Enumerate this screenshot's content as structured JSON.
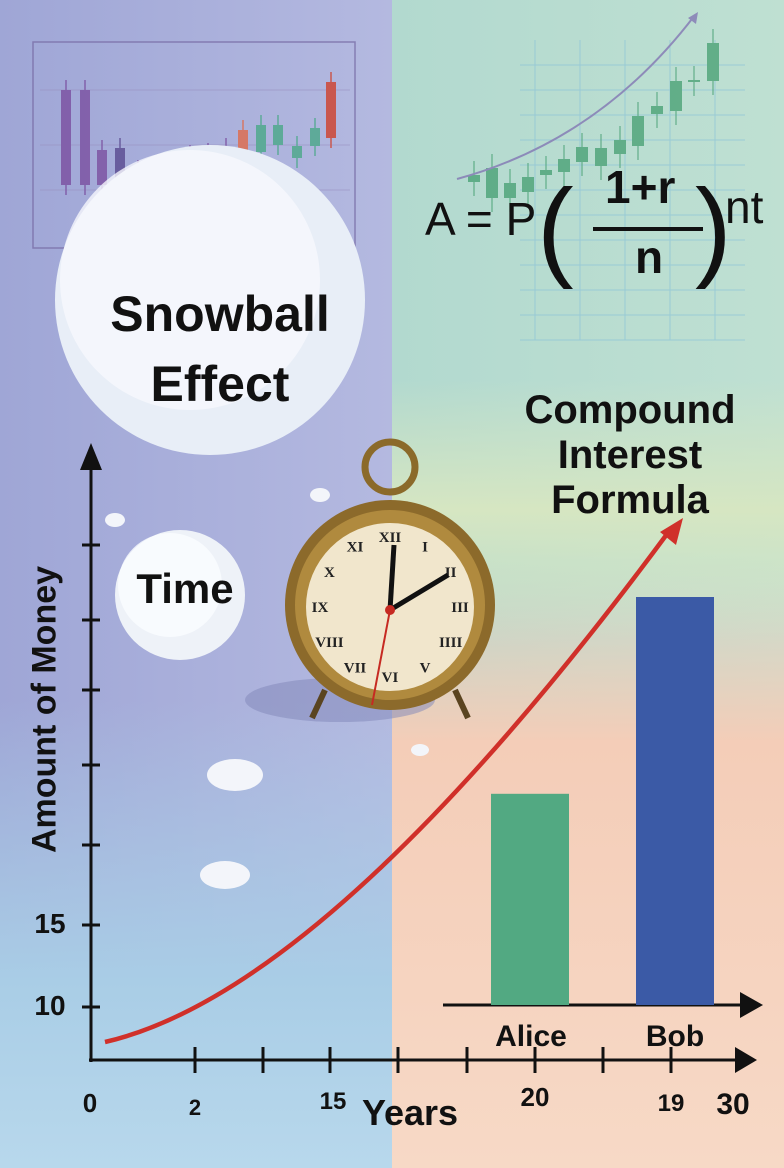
{
  "titles": {
    "snowball_line1": "Snowball",
    "snowball_line2": "Effect",
    "time": "Time",
    "compound_line1": "Compound",
    "compound_line2": "Interest",
    "compound_line3": "Formula"
  },
  "formula": {
    "lhs": "A = P",
    "numerator": "1+r",
    "denominator": "n",
    "exponent": "nt"
  },
  "colors": {
    "curve": "#d0302a",
    "alice_bar": "#52a982",
    "bob_bar": "#3b5aa6",
    "axis": "#111111"
  },
  "chart_data": {
    "type": "bar",
    "ylabel": "Amount of Money",
    "xlabel": "Years",
    "y_ticks": [
      "10",
      "15"
    ],
    "x_ticks": [
      "0",
      "2",
      "15",
      "20",
      "19",
      "30"
    ],
    "categories": [
      "Alice",
      "Bob"
    ],
    "values": [
      23,
      35
    ],
    "curve": {
      "type": "line",
      "shape": "exponential growth",
      "color": "#d0302a"
    }
  }
}
